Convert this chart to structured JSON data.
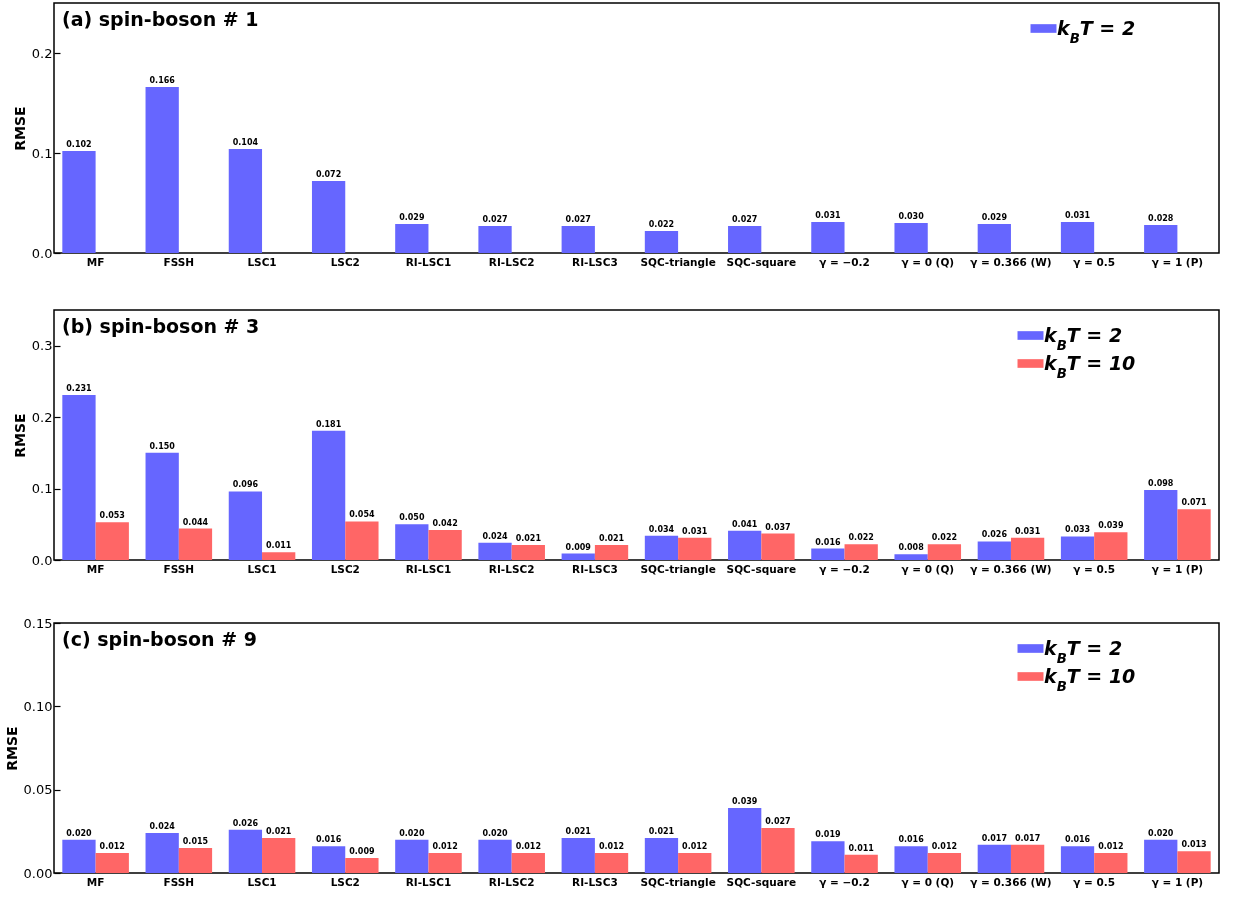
{
  "chart_data": [
    {
      "type": "bar",
      "title": "(a) spin-boson # 1",
      "ylabel": "RMSE",
      "categories": [
        "MF",
        "FSSH",
        "LSC1",
        "LSC2",
        "RI-LSC1",
        "RI-LSC2",
        "RI-LSC3",
        "SQC-triangle",
        "SQC-square",
        "γ = −0.2",
        "γ = 0 (Q)",
        "γ = 0.366 (W)",
        "γ = 0.5",
        "γ = 1 (P)"
      ],
      "series": [
        {
          "name": "k$_{B}$T = 2",
          "color": "#6666ff",
          "values": [
            0.102,
            0.166,
            0.104,
            0.072,
            0.029,
            0.027,
            0.027,
            0.022,
            0.027,
            0.031,
            0.03,
            0.029,
            0.031,
            0.028
          ],
          "value_labels": [
            "0.102",
            "0.166",
            "0.104",
            "0.072",
            "0.029",
            "0.027",
            "0.027",
            "0.022",
            "0.027",
            "0.031",
            "0.030",
            "0.029",
            "0.031",
            "0.028"
          ]
        }
      ],
      "ylim": [
        0,
        0.25
      ],
      "yticks": [
        {
          "value": 0,
          "label": "0.0"
        },
        {
          "value": 0.1,
          "label": "0.1"
        },
        {
          "value": 0.2,
          "label": "0.2"
        }
      ],
      "legend": "top right",
      "grid": false
    },
    {
      "type": "bar",
      "title": "(b) spin-boson # 3",
      "ylabel": "RMSE",
      "categories": [
        "MF",
        "FSSH",
        "LSC1",
        "LSC2",
        "RI-LSC1",
        "RI-LSC2",
        "RI-LSC3",
        "SQC-triangle",
        "SQC-square",
        "γ = −0.2",
        "γ = 0 (Q)",
        "γ = 0.366 (W)",
        "γ = 0.5",
        "γ = 1 (P)"
      ],
      "series": [
        {
          "name": "k$_{B}$T = 2",
          "color": "#6666ff",
          "values": [
            0.231,
            0.15,
            0.096,
            0.181,
            0.05,
            0.024,
            0.009,
            0.034,
            0.041,
            0.016,
            0.008,
            0.026,
            0.033,
            0.098
          ],
          "value_labels": [
            "0.231",
            "0.150",
            "0.096",
            "0.181",
            "0.050",
            "0.024",
            "0.009",
            "0.034",
            "0.041",
            "0.016",
            "0.008",
            "0.026",
            "0.033",
            "0.098"
          ]
        },
        {
          "name": "k$_{B}$T = 10",
          "color": "#ff6666",
          "values": [
            0.053,
            0.044,
            0.011,
            0.054,
            0.042,
            0.021,
            0.021,
            0.031,
            0.037,
            0.022,
            0.022,
            0.031,
            0.039,
            0.071
          ],
          "value_labels": [
            "0.053",
            "0.044",
            "0.011",
            "0.054",
            "0.042",
            "0.021",
            "0.021",
            "0.031",
            "0.037",
            "0.022",
            "0.022",
            "0.031",
            "0.039",
            "0.071"
          ]
        }
      ],
      "ylim": [
        0,
        0.35
      ],
      "yticks": [
        {
          "value": 0,
          "label": "0.0"
        },
        {
          "value": 0.1,
          "label": "0.1"
        },
        {
          "value": 0.2,
          "label": "0.2"
        },
        {
          "value": 0.3,
          "label": "0.3"
        }
      ],
      "legend": "top right",
      "grid": false
    },
    {
      "type": "bar",
      "title": "(c) spin-boson # 9",
      "ylabel": "RMSE",
      "categories": [
        "MF",
        "FSSH",
        "LSC1",
        "LSC2",
        "RI-LSC1",
        "RI-LSC2",
        "RI-LSC3",
        "SQC-triangle",
        "SQC-square",
        "γ = −0.2",
        "γ = 0 (Q)",
        "γ = 0.366 (W)",
        "γ = 0.5",
        "γ = 1 (P)"
      ],
      "series": [
        {
          "name": "k$_{B}$T = 2",
          "color": "#6666ff",
          "values": [
            0.02,
            0.024,
            0.026,
            0.016,
            0.02,
            0.02,
            0.021,
            0.021,
            0.039,
            0.019,
            0.016,
            0.017,
            0.016,
            0.02
          ],
          "value_labels": [
            "0.020",
            "0.024",
            "0.026",
            "0.016",
            "0.020",
            "0.020",
            "0.021",
            "0.021",
            "0.039",
            "0.019",
            "0.016",
            "0.017",
            "0.016",
            "0.020"
          ]
        },
        {
          "name": "k$_{B}$T = 10",
          "color": "#ff6666",
          "values": [
            0.012,
            0.015,
            0.021,
            0.009,
            0.012,
            0.012,
            0.012,
            0.012,
            0.027,
            0.011,
            0.012,
            0.017,
            0.012,
            0.013
          ],
          "value_labels": [
            "0.012",
            "0.015",
            "0.021",
            "0.009",
            "0.012",
            "0.012",
            "0.012",
            "0.012",
            "0.027",
            "0.011",
            "0.012",
            "0.017",
            "0.012",
            "0.013"
          ]
        }
      ],
      "ylim": [
        0,
        0.15
      ],
      "yticks": [
        {
          "value": 0,
          "label": "0.00"
        },
        {
          "value": 0.05,
          "label": "0.05"
        },
        {
          "value": 0.1,
          "label": "0.10"
        },
        {
          "value": 0.15,
          "label": "0.15"
        }
      ],
      "legend": "top right",
      "grid": false
    }
  ]
}
